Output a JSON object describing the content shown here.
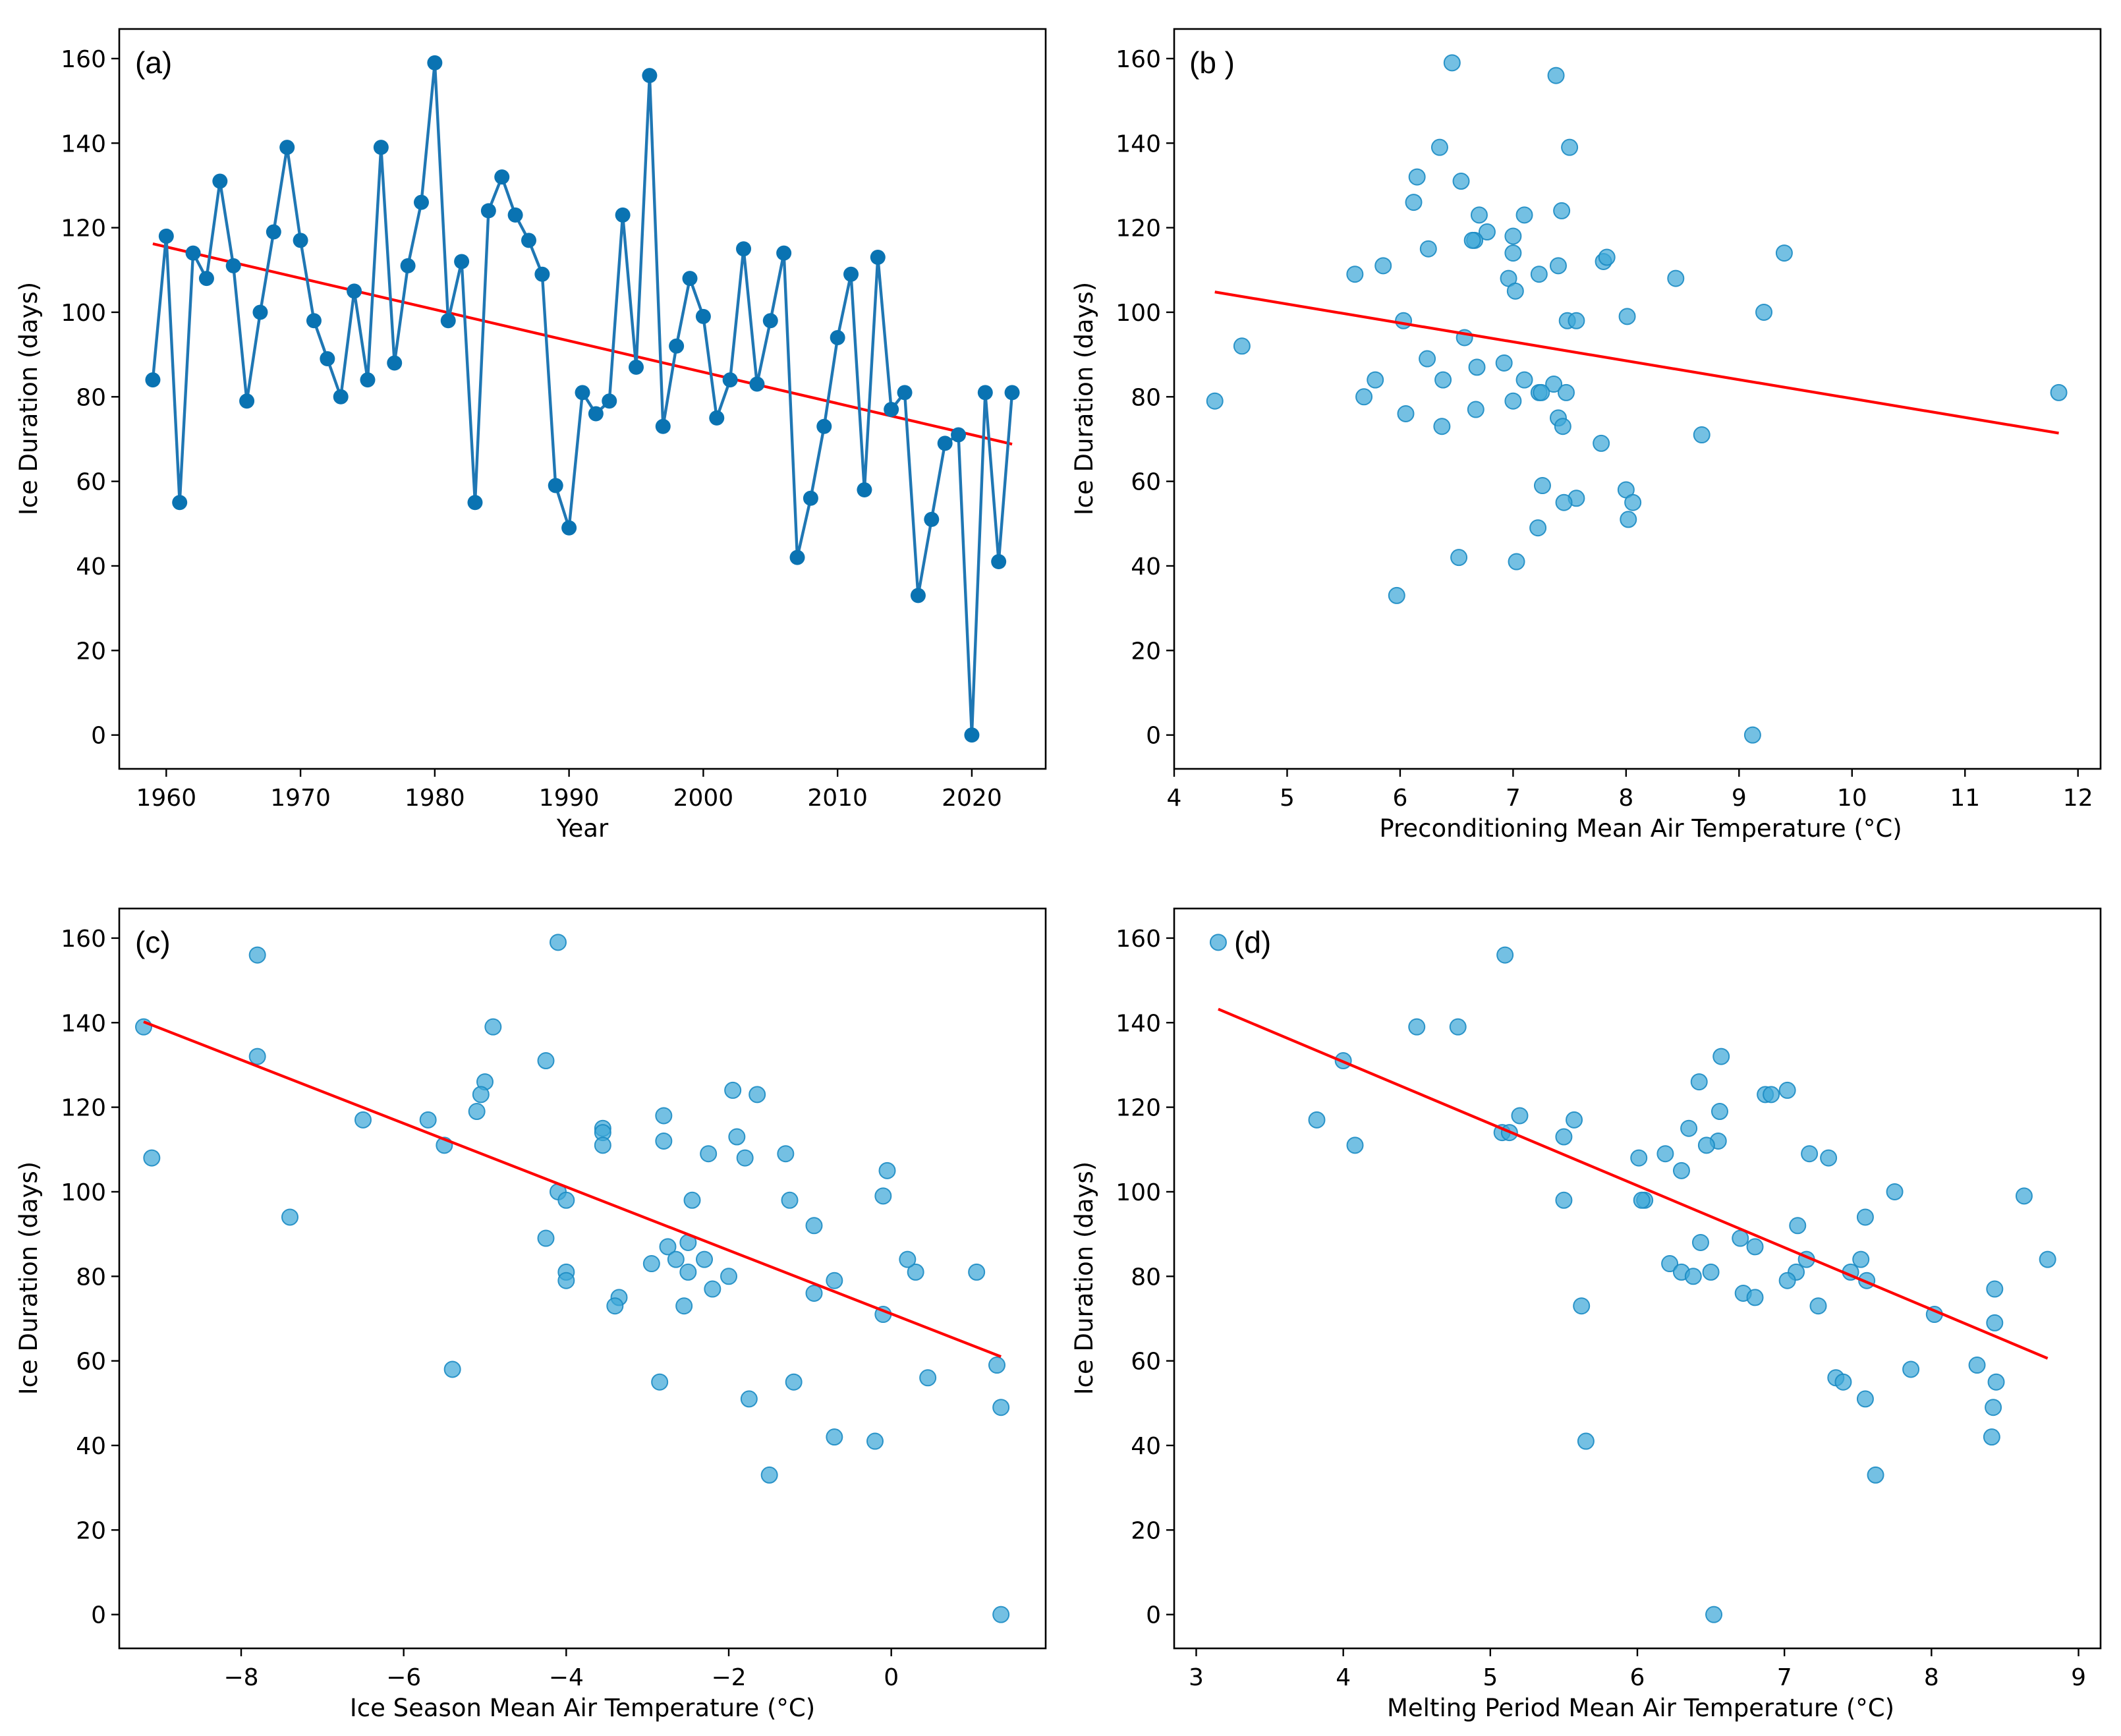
{
  "colors": {
    "series_line": "#1f77b4",
    "point": "#0a73b2",
    "scatter_fill": "#3fa8d8",
    "scatter_stroke": "#1b8bc3",
    "trend": "#ff0000"
  },
  "chart_data": [
    {
      "id": "a",
      "type": "line",
      "panel_label": "(a)",
      "xlabel": "Year",
      "ylabel": "Ice Duration (days)",
      "xlim": [
        1956.5,
        2025.5
      ],
      "ylim": [
        -8,
        167
      ],
      "xticks": [
        1960,
        1970,
        1980,
        1990,
        2000,
        2010,
        2020
      ],
      "xtick_labels": [
        "1960",
        "1970",
        "1980",
        "1990",
        "2000",
        "2010",
        "2020"
      ],
      "yticks": [
        0,
        20,
        40,
        60,
        80,
        100,
        120,
        140,
        160
      ],
      "ytick_labels": [
        "0",
        "20",
        "40",
        "60",
        "80",
        "100",
        "120",
        "140",
        "160"
      ],
      "series": [
        {
          "name": "Ice Duration",
          "x": [
            1959,
            1960,
            1961,
            1962,
            1963,
            1964,
            1965,
            1966,
            1967,
            1968,
            1969,
            1970,
            1971,
            1972,
            1973,
            1974,
            1975,
            1976,
            1977,
            1978,
            1979,
            1980,
            1981,
            1982,
            1983,
            1984,
            1985,
            1986,
            1987,
            1988,
            1989,
            1990,
            1991,
            1992,
            1993,
            1994,
            1995,
            1996,
            1997,
            1998,
            1999,
            2000,
            2001,
            2002,
            2003,
            2004,
            2005,
            2006,
            2007,
            2008,
            2009,
            2010,
            2011,
            2012,
            2013,
            2014,
            2015,
            2016,
            2017,
            2018,
            2019,
            2020,
            2021,
            2022,
            2023
          ],
          "y": [
            84,
            118,
            55,
            114,
            108,
            131,
            111,
            79,
            100,
            119,
            139,
            117,
            98,
            89,
            80,
            105,
            84,
            139,
            88,
            111,
            126,
            159,
            98,
            112,
            55,
            124,
            132,
            123,
            117,
            109,
            59,
            49,
            81,
            76,
            79,
            123,
            87,
            156,
            73,
            92,
            108,
            99,
            75,
            84,
            115,
            83,
            98,
            114,
            42,
            56,
            73,
            94,
            109,
            58,
            113,
            77,
            81,
            33,
            51,
            69,
            71,
            0,
            81,
            41,
            81
          ]
        }
      ],
      "trend": {
        "x": [
          1959,
          2023
        ],
        "y": [
          116.2,
          68.8
        ]
      }
    },
    {
      "id": "b",
      "type": "scatter",
      "panel_label": "(b )",
      "xlabel": "Preconditioning Mean Air Temperature (°C)",
      "ylabel": "Ice Duration (days)",
      "xlim": [
        4.0,
        12.2
      ],
      "ylim": [
        -8,
        167
      ],
      "xticks": [
        4,
        5,
        6,
        7,
        8,
        9,
        10,
        11,
        12
      ],
      "xtick_labels": [
        "4",
        "5",
        "6",
        "7",
        "8",
        "9",
        "10",
        "11",
        "12"
      ],
      "yticks": [
        0,
        20,
        40,
        60,
        80,
        100,
        120,
        140,
        160
      ],
      "ytick_labels": [
        "0",
        "20",
        "40",
        "60",
        "80",
        "100",
        "120",
        "140",
        "160"
      ],
      "points": {
        "x": [
          6.46,
          7.38,
          6.35,
          7.5,
          6.15,
          6.54,
          6.12,
          7.43,
          6.7,
          7.1,
          6.77,
          6.66,
          6.64,
          7.0,
          6.25,
          7.0,
          7.8,
          7.83,
          7.4,
          5.85,
          5.6,
          6.96,
          7.23,
          8.44,
          7.02,
          6.03,
          7.48,
          7.56,
          8.01,
          9.22,
          6.57,
          9.4,
          4.6,
          6.24,
          6.92,
          7.36,
          7.47,
          5.78,
          6.38,
          7.1,
          7.23,
          7.25,
          5.68,
          6.67,
          7.0,
          6.05,
          7.4,
          6.37,
          7.44,
          7.78,
          8.67,
          7.26,
          8.0,
          7.56,
          7.45,
          8.06,
          8.02,
          7.22,
          6.52,
          7.03,
          5.97,
          9.12,
          11.83,
          4.36,
          6.68
        ],
        "y": [
          159,
          156,
          139,
          139,
          132,
          131,
          126,
          124,
          123,
          123,
          119,
          117,
          117,
          118,
          115,
          114,
          112,
          113,
          111,
          111,
          109,
          108,
          109,
          108,
          105,
          98,
          98,
          98,
          99,
          100,
          94,
          114,
          92,
          89,
          88,
          83,
          81,
          84,
          84,
          84,
          81,
          81,
          80,
          77,
          79,
          76,
          75,
          73,
          73,
          69,
          71,
          59,
          58,
          56,
          55,
          55,
          51,
          49,
          42,
          41,
          33,
          0,
          81,
          79,
          87
        ]
      },
      "trend": {
        "x": [
          4.36,
          11.83
        ],
        "y": [
          104.8,
          71.4
        ]
      }
    },
    {
      "id": "c",
      "type": "scatter",
      "panel_label": "(c)",
      "xlabel": "Ice Season Mean Air Temperature (°C)",
      "ylabel": "Ice Duration (days)",
      "xlim": [
        -9.5,
        1.9
      ],
      "ylim": [
        -8,
        167
      ],
      "xticks": [
        -8,
        -6,
        -4,
        -2,
        0
      ],
      "xtick_labels": [
        "−8",
        "−6",
        "−4",
        "−2",
        "0"
      ],
      "yticks": [
        0,
        20,
        40,
        60,
        80,
        100,
        120,
        140,
        160
      ],
      "ytick_labels": [
        "0",
        "20",
        "40",
        "60",
        "80",
        "100",
        "120",
        "140",
        "160"
      ],
      "points": {
        "x": [
          -4.1,
          -7.8,
          -9.2,
          -4.9,
          -7.8,
          -4.25,
          -5.0,
          -5.05,
          -1.95,
          -1.65,
          -5.1,
          -2.8,
          -6.5,
          -5.7,
          -3.55,
          -3.55,
          -1.9,
          -2.8,
          -3.55,
          -5.5,
          -1.3,
          -2.25,
          -1.8,
          -0.05,
          -9.1,
          -2.45,
          -0.1,
          -1.25,
          -0.95,
          -4.1,
          -4.0,
          -7.4,
          -4.25,
          -2.75,
          -2.5,
          -2.95,
          -2.65,
          -2.3,
          -0.7,
          0.3,
          0.2,
          -2.5,
          -2.0,
          -4.0,
          -3.35,
          -4.0,
          -0.95,
          -2.55,
          -3.4,
          -2.2,
          -0.1,
          1.05,
          0.45,
          1.3,
          -5.4,
          -2.85,
          -1.2,
          -1.75,
          1.35,
          -0.7,
          -0.2,
          -1.5,
          1.35
        ],
        "y": [
          159,
          156,
          139,
          139,
          132,
          131,
          126,
          123,
          124,
          123,
          119,
          118,
          117,
          117,
          115,
          114,
          113,
          112,
          111,
          111,
          109,
          109,
          108,
          105,
          108,
          98,
          99,
          98,
          92,
          100,
          98,
          94,
          89,
          87,
          88,
          83,
          84,
          84,
          79,
          81,
          84,
          81,
          80,
          81,
          75,
          79,
          76,
          73,
          73,
          77,
          71,
          81,
          56,
          59,
          58,
          55,
          55,
          51,
          49,
          42,
          41,
          33,
          0
        ]
      },
      "trend": {
        "x": [
          -9.2,
          1.35
        ],
        "y": [
          140.2,
          61.0
        ]
      }
    },
    {
      "id": "d",
      "type": "scatter",
      "panel_label": "(d)",
      "xlabel": "Melting Period Mean Air Temperature (°C)",
      "ylabel": "Ice Duration (days)",
      "xlim": [
        2.85,
        9.15
      ],
      "ylim": [
        -8,
        167
      ],
      "xticks": [
        3,
        4,
        5,
        6,
        7,
        8,
        9
      ],
      "xtick_labels": [
        "3",
        "4",
        "5",
        "6",
        "7",
        "8",
        "9"
      ],
      "yticks": [
        0,
        20,
        40,
        60,
        80,
        100,
        120,
        140,
        160
      ],
      "ytick_labels": [
        "0",
        "20",
        "40",
        "60",
        "80",
        "100",
        "120",
        "140",
        "160"
      ],
      "points": {
        "x": [
          3.15,
          5.1,
          4.5,
          4.78,
          6.57,
          4.0,
          6.42,
          7.02,
          6.87,
          6.91,
          5.2,
          6.56,
          3.82,
          5.57,
          6.35,
          5.08,
          5.13,
          5.5,
          6.55,
          6.47,
          4.08,
          7.17,
          7.3,
          6.01,
          6.19,
          6.3,
          7.75,
          8.63,
          6.05,
          6.03,
          5.5,
          7.55,
          7.09,
          6.7,
          6.8,
          6.43,
          6.22,
          6.3,
          6.38,
          6.5,
          7.15,
          7.52,
          7.45,
          7.08,
          7.02,
          7.56,
          6.72,
          6.8,
          8.43,
          8.79,
          5.62,
          7.23,
          8.02,
          8.43,
          8.44,
          7.35,
          7.4,
          7.55,
          8.31,
          7.86,
          8.41,
          8.42,
          5.65,
          7.62,
          6.52
        ],
        "y": [
          159,
          156,
          139,
          139,
          132,
          131,
          126,
          124,
          123,
          123,
          118,
          119,
          117,
          117,
          115,
          114,
          114,
          113,
          112,
          111,
          111,
          109,
          108,
          108,
          109,
          105,
          100,
          99,
          98,
          98,
          98,
          94,
          92,
          89,
          87,
          88,
          83,
          81,
          80,
          81,
          84,
          84,
          81,
          81,
          79,
          79,
          76,
          75,
          77,
          84,
          73,
          73,
          71,
          69,
          55,
          56,
          55,
          51,
          59,
          58,
          42,
          49,
          41,
          33,
          0
        ]
      },
      "trend": {
        "x": [
          3.15,
          8.79
        ],
        "y": [
          143.2,
          60.6
        ]
      }
    }
  ]
}
